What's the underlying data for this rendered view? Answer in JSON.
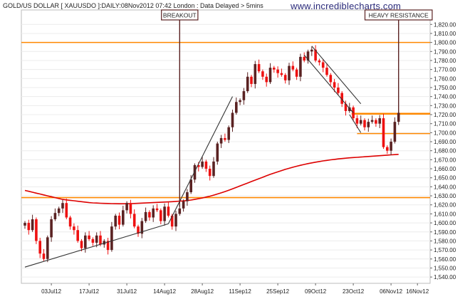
{
  "header": {
    "title": "GOLD/US DOLLAR [ XAUUSDO ]:DAILY:08Nov2012 07:42 London : Data Delayed > 5mins",
    "brand": "www.incrediblecharts.com"
  },
  "chart_data": {
    "type": "candlestick",
    "title": "GOLD/US DOLLAR [ XAUUSDO ]:DAILY:08Nov2012 07:42 London : Data Delayed > 5mins",
    "ylim": [
      1533,
      1836
    ],
    "y_ticks": [
      1540,
      1550,
      1560,
      1570,
      1580,
      1590,
      1600,
      1610,
      1620,
      1630,
      1640,
      1650,
      1660,
      1670,
      1680,
      1690,
      1700,
      1710,
      1720,
      1730,
      1740,
      1750,
      1760,
      1770,
      1780,
      1790,
      1800,
      1810,
      1820
    ],
    "x_ticks": [
      {
        "label": "03Jul12",
        "bar": 7
      },
      {
        "label": "17Jul12",
        "bar": 17
      },
      {
        "label": "31Jul12",
        "bar": 27
      },
      {
        "label": "14Aug12",
        "bar": 37
      },
      {
        "label": "28Aug12",
        "bar": 47
      },
      {
        "label": "11Sep12",
        "bar": 57
      },
      {
        "label": "25Sep12",
        "bar": 67
      },
      {
        "label": "09Oct12",
        "bar": 77
      },
      {
        "label": "23Oct12",
        "bar": 87
      },
      {
        "label": "06Nov12",
        "bar": 97
      },
      {
        "label": "16Nov12",
        "bar": 104
      }
    ],
    "series_colors": {
      "up": "#5a2222",
      "down": "#ee1111",
      "moving_average": "#dd0000",
      "trendline": "#333333",
      "horizontal_level": "#ff8800",
      "annotation": "#5a2222"
    },
    "closes": [
      1600,
      1592,
      1604,
      1580,
      1566,
      1560,
      1584,
      1604,
      1611,
      1616,
      1622,
      1606,
      1596,
      1592,
      1580,
      1572,
      1586,
      1582,
      1578,
      1586,
      1576,
      1580,
      1570,
      1596,
      1608,
      1598,
      1614,
      1622,
      1610,
      1596,
      1588,
      1602,
      1612,
      1606,
      1616,
      1614,
      1602,
      1618,
      1608,
      1596,
      1610,
      1616,
      1624,
      1634,
      1648,
      1664,
      1662,
      1668,
      1660,
      1652,
      1668,
      1688,
      1694,
      1692,
      1706,
      1722,
      1734,
      1736,
      1746,
      1762,
      1754,
      1776,
      1768,
      1762,
      1756,
      1772,
      1770,
      1766,
      1764,
      1758,
      1774,
      1770,
      1762,
      1784,
      1780,
      1790,
      1792,
      1780,
      1778,
      1772,
      1764,
      1756,
      1750,
      1744,
      1732,
      1724,
      1728,
      1716,
      1710,
      1714,
      1706,
      1712,
      1714,
      1710,
      1716,
      1684,
      1680,
      1690,
      1712,
      1722
    ],
    "moving_average": {
      "name": "",
      "values": [
        1636,
        1635,
        1634,
        1633,
        1632,
        1631,
        1630,
        1629,
        1628,
        1627,
        1626,
        1625.5,
        1625,
        1624.5,
        1624,
        1623.5,
        1623,
        1622.5,
        1622.2,
        1622,
        1621.8,
        1621.6,
        1621.5,
        1621.4,
        1621.3,
        1621.2,
        1621.2,
        1621.3,
        1621.4,
        1621.5,
        1621.7,
        1621.9,
        1622.1,
        1622.3,
        1622.5,
        1622.7,
        1622.9,
        1623.1,
        1623.3,
        1623.5,
        1623.8,
        1624.1,
        1624.4,
        1624.8,
        1625.3,
        1626,
        1626.8,
        1627.6,
        1628.6,
        1629.6,
        1630.8,
        1632,
        1633.3,
        1634.7,
        1636.2,
        1637.8,
        1639.4,
        1641,
        1642.6,
        1644.2,
        1645.8,
        1647.4,
        1649,
        1650.6,
        1652.2,
        1653.8,
        1655.2,
        1656.6,
        1658,
        1659.3,
        1660.5,
        1661.7,
        1662.8,
        1663.8,
        1664.8,
        1665.7,
        1666.5,
        1667.3,
        1668,
        1668.7,
        1669.3,
        1669.9,
        1670.4,
        1670.9,
        1671.3,
        1671.7,
        1672.1,
        1672.4,
        1672.7,
        1673,
        1673.3,
        1673.6,
        1673.9,
        1674.2,
        1674.5,
        1674.8,
        1675.1,
        1675.4,
        1675.7,
        1676
      ]
    },
    "horizontal_levels": [
      1800,
      1628,
      1721,
      1699
    ],
    "trendlines": [
      {
        "from": [
          0,
          1551
        ],
        "to": [
          38,
          1599
        ]
      },
      {
        "from": [
          38,
          1599
        ],
        "to": [
          55,
          1740
        ]
      },
      {
        "from": [
          74,
          1786
        ],
        "to": [
          87,
          1722
        ]
      },
      {
        "from": [
          76,
          1796
        ],
        "to": [
          89,
          1732
        ]
      },
      {
        "from": [
          86,
          1720
        ],
        "to": [
          89,
          1700
        ]
      }
    ],
    "annotations": [
      {
        "text": "BREAKOUT",
        "bar": 41,
        "price": 1618
      },
      {
        "text": "HEAVY RESISTANCE",
        "bar": 99,
        "price": 1722
      }
    ]
  }
}
